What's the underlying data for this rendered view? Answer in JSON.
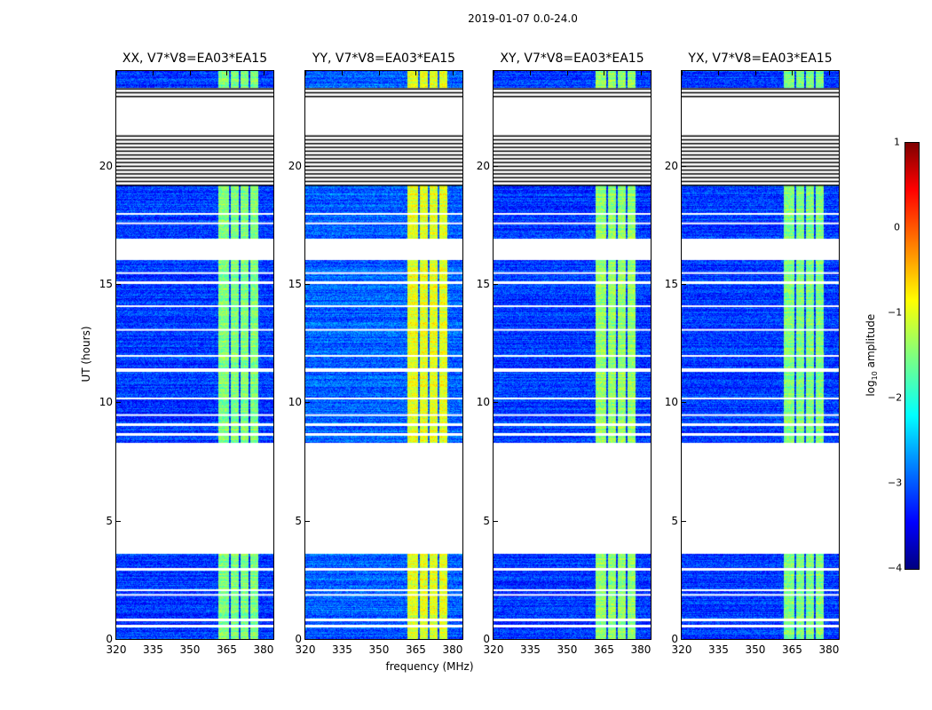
{
  "chart_data": {
    "type": "heatmap",
    "title": "2019-01-07 0.0-24.0",
    "xlabel": "frequency (MHz)",
    "ylabel": "UT (hours)",
    "xlim": [
      320,
      384
    ],
    "ylim": [
      0,
      24
    ],
    "xticks": [
      "320",
      "335",
      "350",
      "365",
      "380"
    ],
    "xtick_values": [
      320,
      335,
      350,
      365,
      380
    ],
    "yticks": [
      "0",
      "5",
      "10",
      "15",
      "20"
    ],
    "ytick_values": [
      0,
      5,
      10,
      15,
      20
    ],
    "colorbar": {
      "label_main": "log",
      "label_sub": "10",
      "label_rest": " amplitude",
      "range": [
        -4,
        1
      ],
      "ticks": [
        "1",
        "0",
        "−1",
        "−2",
        "−3",
        "−4"
      ],
      "tick_values": [
        1,
        0,
        -1,
        -2,
        -3,
        -4
      ],
      "colormap": "jet"
    },
    "panels": [
      {
        "title": "XX, V7*V8=EA03*EA15",
        "base_level": -3.1,
        "bright_level": -1.5
      },
      {
        "title": "YY, V7*V8=EA03*EA15",
        "base_level": -2.9,
        "bright_level": -1.0
      },
      {
        "title": "XY, V7*V8=EA03*EA15",
        "base_level": -3.1,
        "bright_level": -1.4
      },
      {
        "title": "YX, V7*V8=EA03*EA15",
        "base_level": -3.1,
        "bright_level": -1.5
      }
    ],
    "data_segments_hours": [
      [
        0,
        0.5
      ],
      [
        0.6,
        0.75
      ],
      [
        0.85,
        2.9
      ],
      [
        3.0,
        3.6
      ],
      [
        8.3,
        8.6
      ],
      [
        8.7,
        9.0
      ],
      [
        9.1,
        11.3
      ],
      [
        11.45,
        15.0
      ],
      [
        15.1,
        16.0
      ],
      [
        16.9,
        19.2
      ],
      [
        23.3,
        24
      ]
    ],
    "flagged_line_regions_hours": [
      [
        19.2,
        21.3
      ],
      [
        22.95,
        23.3
      ]
    ],
    "white_gap_lines_hours": [
      1.9,
      2.1,
      9.5,
      10.2,
      12.0,
      13.1,
      14.1,
      15.5,
      17.6,
      18.0
    ],
    "bright_channel_blocks_mhz": [
      [
        361.5,
        365.8
      ],
      [
        366.5,
        370
      ],
      [
        370.5,
        374
      ],
      [
        374.5,
        378
      ]
    ]
  }
}
